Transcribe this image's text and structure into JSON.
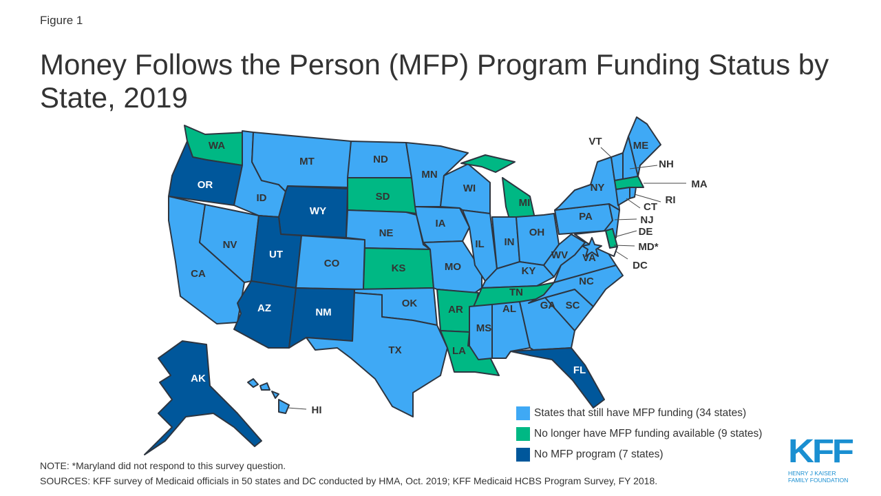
{
  "figure_label": "Figure 1",
  "title": "Money Follows the Person (MFP) Program Funding Status by State, 2019",
  "colors": {
    "has_funding": "#3fa9f5",
    "no_longer_funded": "#00b884",
    "no_program": "#00579b",
    "no_response": "#ffffff",
    "border": "#2d3540"
  },
  "legend": [
    {
      "key": "has_funding",
      "label": "States that still have MFP funding (34 states)"
    },
    {
      "key": "no_longer_funded",
      "label": "No longer have MFP funding available (9 states)"
    },
    {
      "key": "no_program",
      "label": "No MFP program (7 states)"
    }
  ],
  "states": {
    "WA": "no_longer_funded",
    "OR": "no_program",
    "CA": "has_funding",
    "NV": "has_funding",
    "ID": "has_funding",
    "MT": "has_funding",
    "WY": "no_program",
    "UT": "no_program",
    "AZ": "no_program",
    "CO": "has_funding",
    "NM": "no_program",
    "ND": "has_funding",
    "SD": "no_longer_funded",
    "NE": "has_funding",
    "KS": "no_longer_funded",
    "OK": "has_funding",
    "TX": "has_funding",
    "MN": "has_funding",
    "IA": "has_funding",
    "MO": "has_funding",
    "AR": "no_longer_funded",
    "LA": "no_longer_funded",
    "WI": "has_funding",
    "IL": "has_funding",
    "MI": "no_longer_funded",
    "IN": "has_funding",
    "OH": "has_funding",
    "KY": "has_funding",
    "TN": "no_longer_funded",
    "MS": "has_funding",
    "AL": "has_funding",
    "GA": "has_funding",
    "FL": "no_program",
    "SC": "has_funding",
    "NC": "has_funding",
    "VA": "has_funding",
    "WV": "has_funding",
    "PA": "has_funding",
    "NY": "has_funding",
    "NJ": "has_funding",
    "VT": "has_funding",
    "NH": "has_funding",
    "ME": "has_funding",
    "MA": "no_longer_funded",
    "CT": "has_funding",
    "RI": "has_funding",
    "DE": "no_longer_funded",
    "MD": "no_response",
    "DC": "has_funding",
    "AK": "no_program",
    "HI": "has_funding"
  },
  "callout_labels": {
    "MD": "MD*"
  },
  "note": "NOTE: *Maryland did not respond to this survey question.",
  "sources": "SOURCES: KFF survey of Medicaid officials in 50 states and DC conducted by HMA, Oct. 2019; KFF Medicaid HCBS Program Survey, FY 2018.",
  "logo": {
    "mark": "KFF",
    "line1": "HENRY J KAISER",
    "line2": "FAMILY FOUNDATION"
  }
}
